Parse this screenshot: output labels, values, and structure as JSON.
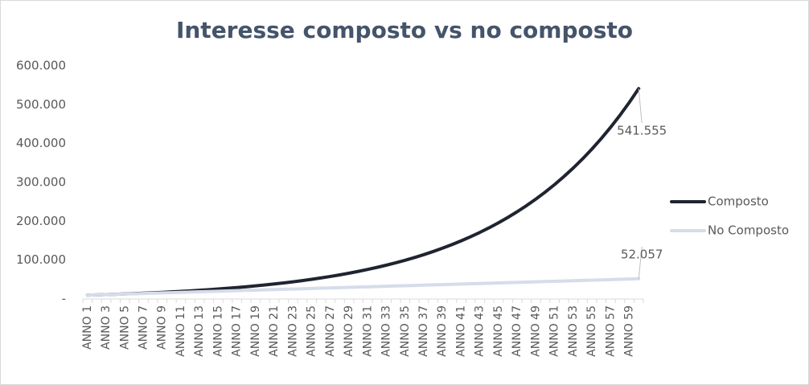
{
  "chart_data": {
    "type": "line",
    "title": "Interesse composto vs no composto",
    "categories": [
      "ANNO 1",
      null,
      "ANNO 3",
      null,
      "ANNO 5",
      null,
      "ANNO 7",
      null,
      "ANNO 9",
      null,
      "ANNO 11",
      null,
      "ANNO 13",
      null,
      "ANNO 15",
      null,
      "ANNO 17",
      null,
      "ANNO 19",
      null,
      "ANNO 21",
      null,
      "ANNO 23",
      null,
      "ANNO 25",
      null,
      "ANNO 27",
      null,
      "ANNO 29",
      null,
      "ANNO 31",
      null,
      "ANNO 33",
      null,
      "ANNO 35",
      null,
      "ANNO 37",
      null,
      "ANNO 39",
      null,
      "ANNO 41",
      null,
      "ANNO 43",
      null,
      "ANNO 45",
      null,
      "ANNO 47",
      null,
      "ANNO 49",
      null,
      "ANNO 51",
      null,
      "ANNO 53",
      null,
      "ANNO 55",
      null,
      "ANNO 57",
      null,
      "ANNO 59",
      null
    ],
    "series": [
      {
        "name": "Composto",
        "color": "#1f2430",
        "values": [
          10000,
          10700,
          11449,
          12250,
          13108,
          14026,
          15007,
          16058,
          17182,
          18385,
          19672,
          21049,
          22522,
          24098,
          25785,
          27590,
          29522,
          31588,
          33799,
          36165,
          38697,
          41406,
          44304,
          47405,
          50724,
          54274,
          58074,
          62139,
          66488,
          71143,
          76123,
          81451,
          87153,
          93253,
          99781,
          106766,
          114239,
          122236,
          130793,
          139948,
          149745,
          160227,
          171443,
          183444,
          196285,
          210025,
          224726,
          240457,
          257289,
          275299,
          294570,
          315190,
          337253,
          360861,
          386122,
          413150,
          442071,
          473015,
          506127,
          541555
        ],
        "value_labels": [
          null,
          null,
          null,
          null,
          null,
          null,
          null,
          null,
          null,
          null,
          null,
          null,
          null,
          null,
          null,
          null,
          null,
          null,
          null,
          null,
          null,
          null,
          null,
          null,
          null,
          null,
          null,
          null,
          null,
          null,
          null,
          null,
          null,
          null,
          null,
          null,
          null,
          null,
          null,
          null,
          null,
          null,
          null,
          null,
          null,
          null,
          null,
          null,
          null,
          null,
          null,
          null,
          null,
          null,
          null,
          null,
          null,
          null,
          null,
          "541.555"
        ]
      },
      {
        "name": "No Composto",
        "color": "#d6dcea",
        "values": [
          10000,
          10713,
          11426,
          12139,
          12851,
          13564,
          14277,
          14990,
          15703,
          16416,
          17128,
          17841,
          18554,
          19267,
          19980,
          20693,
          21405,
          22118,
          22831,
          23544,
          24257,
          24970,
          25682,
          26395,
          27108,
          27821,
          28534,
          29247,
          29959,
          30672,
          31385,
          32098,
          32811,
          33524,
          34236,
          34949,
          35662,
          36375,
          37088,
          37801,
          38513,
          39226,
          39939,
          40652,
          41365,
          42078,
          42790,
          43503,
          44216,
          44929,
          45642,
          46355,
          47067,
          47780,
          48493,
          49206,
          49919,
          50632,
          51344,
          52057
        ],
        "value_labels": [
          null,
          null,
          null,
          null,
          null,
          null,
          null,
          null,
          null,
          null,
          null,
          null,
          null,
          null,
          null,
          null,
          null,
          null,
          null,
          null,
          null,
          null,
          null,
          null,
          null,
          null,
          null,
          null,
          null,
          null,
          null,
          null,
          null,
          null,
          null,
          null,
          null,
          null,
          null,
          null,
          null,
          null,
          null,
          null,
          null,
          null,
          null,
          null,
          null,
          null,
          null,
          null,
          null,
          null,
          null,
          null,
          null,
          null,
          null,
          "52.057"
        ]
      }
    ],
    "ylim": [
      0,
      600000
    ],
    "yticks": [
      {
        "value": 0,
        "label": "-"
      },
      {
        "value": 100000,
        "label": "100.000"
      },
      {
        "value": 200000,
        "label": "200.000"
      },
      {
        "value": 300000,
        "label": "300.000"
      },
      {
        "value": 400000,
        "label": "400.000"
      },
      {
        "value": 500000,
        "label": "500.000"
      },
      {
        "value": 600000,
        "label": "600.000"
      }
    ],
    "grid": false,
    "legend": "right"
  }
}
